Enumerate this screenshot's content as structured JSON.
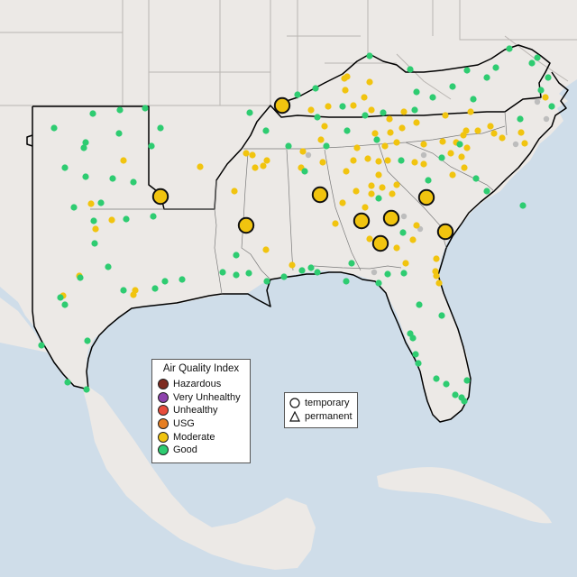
{
  "map": {
    "colors": {
      "water": "#cfdde9",
      "land": "#ece9e6",
      "state_border": "#b9b5b1",
      "country_border": "#9e9a96",
      "region_outline": "#000000",
      "no_data": "#bdbdbd"
    },
    "aqi_legend": {
      "title": "Air Quality Index",
      "items": [
        {
          "label": "Hazardous",
          "color": "#7e2a1f"
        },
        {
          "label": "Very Unhealthy",
          "color": "#8e44ad"
        },
        {
          "label": "Unhealthy",
          "color": "#e74c3c"
        },
        {
          "label": "USG",
          "color": "#e67e22"
        },
        {
          "label": "Moderate",
          "color": "#f1c40f"
        },
        {
          "label": "Good",
          "color": "#2ecc71"
        }
      ]
    },
    "type_legend": {
      "items": [
        {
          "label": "temporary",
          "icon": "circle-icon"
        },
        {
          "label": "permanent",
          "icon": "triangle-icon"
        }
      ]
    }
  }
}
